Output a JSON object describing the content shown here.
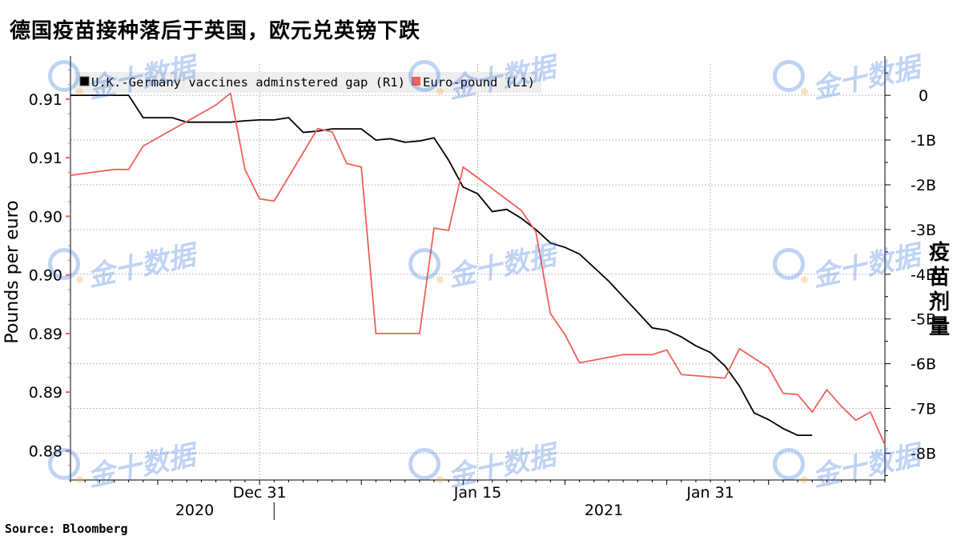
{
  "title": "德国疫苗接种落后于英国，欧元兑英镑下跌",
  "source": "Source:  Bloomberg",
  "watermark": "金十数据",
  "colors": {
    "gap_line": "#000000",
    "euro_line": "#f0605a",
    "grid": "#bdbdbd",
    "legend_bg": "#eeeeee",
    "watermark": "#2f6fdc"
  },
  "chart_data": {
    "type": "line",
    "x": [
      "2020-12-18",
      "2020-12-21",
      "2020-12-22",
      "2020-12-23",
      "2020-12-24",
      "2020-12-28",
      "2020-12-29",
      "2020-12-30",
      "2020-12-31",
      "2021-01-01",
      "2021-01-04",
      "2021-01-05",
      "2021-01-06",
      "2021-01-07",
      "2021-01-08",
      "2021-01-11",
      "2021-01-12",
      "2021-01-13",
      "2021-01-14",
      "2021-01-15",
      "2021-01-18",
      "2021-01-19",
      "2021-01-20",
      "2021-01-21",
      "2021-01-22",
      "2021-01-25",
      "2021-01-26",
      "2021-01-27",
      "2021-01-28",
      "2021-01-29",
      "2021-02-01",
      "2021-02-02",
      "2021-02-03",
      "2021-02-04",
      "2021-02-05"
    ],
    "series": [
      {
        "name": "U.K.-Germany vaccines adminstered gap (R1)",
        "axis": "right",
        "unit": "B",
        "points": [
          [
            "2020-12-18",
            0
          ],
          [
            "2020-12-19",
            0
          ],
          [
            "2020-12-20",
            0
          ],
          [
            "2020-12-21",
            0
          ],
          [
            "2020-12-22",
            0
          ],
          [
            "2020-12-23",
            -0.5
          ],
          [
            "2020-12-24",
            -0.5
          ],
          [
            "2020-12-25",
            -0.5
          ],
          [
            "2020-12-26",
            -0.6
          ],
          [
            "2020-12-27",
            -0.6
          ],
          [
            "2020-12-28",
            -0.6
          ],
          [
            "2020-12-29",
            -0.6
          ],
          [
            "2020-12-30",
            -0.57
          ],
          [
            "2020-12-31",
            -0.55
          ],
          [
            "2021-01-01",
            -0.55
          ],
          [
            "2021-01-02",
            -0.5
          ],
          [
            "2021-01-03",
            -0.83
          ],
          [
            "2021-01-04",
            -0.8
          ],
          [
            "2021-01-05",
            -0.75
          ],
          [
            "2021-01-06",
            -0.75
          ],
          [
            "2021-01-07",
            -0.75
          ],
          [
            "2021-01-08",
            -1.0
          ],
          [
            "2021-01-09",
            -0.97
          ],
          [
            "2021-01-10",
            -1.05
          ],
          [
            "2021-01-11",
            -1.02
          ],
          [
            "2021-01-12",
            -0.95
          ],
          [
            "2021-01-13",
            -1.45
          ],
          [
            "2021-01-14",
            -2.05
          ],
          [
            "2021-01-15",
            -2.2
          ],
          [
            "2021-01-16",
            -2.6
          ],
          [
            "2021-01-17",
            -2.55
          ],
          [
            "2021-01-18",
            -2.75
          ],
          [
            "2021-01-19",
            -3.0
          ],
          [
            "2021-01-20",
            -3.3
          ],
          [
            "2021-01-21",
            -3.4
          ],
          [
            "2021-01-22",
            -3.55
          ],
          [
            "2021-01-23",
            -3.85
          ],
          [
            "2021-01-24",
            -4.15
          ],
          [
            "2021-01-25",
            -4.5
          ],
          [
            "2021-01-26",
            -4.85
          ],
          [
            "2021-01-27",
            -5.2
          ],
          [
            "2021-01-28",
            -5.25
          ],
          [
            "2021-01-29",
            -5.4
          ],
          [
            "2021-01-30",
            -5.6
          ],
          [
            "2021-01-31",
            -5.75
          ],
          [
            "2021-02-01",
            -6.05
          ],
          [
            "2021-02-02",
            -6.5
          ],
          [
            "2021-02-03",
            -7.1
          ],
          [
            "2021-02-04",
            -7.25
          ],
          [
            "2021-02-05",
            -7.45
          ],
          [
            "2021-02-06",
            -7.6
          ],
          [
            "2021-02-07",
            -7.6
          ]
        ]
      },
      {
        "name": "Euro-pound (L1)",
        "axis": "left",
        "unit": "pounds per euro",
        "points": [
          [
            "2020-12-18",
            0.9085
          ],
          [
            "2020-12-21",
            0.909
          ],
          [
            "2020-12-22",
            0.909
          ],
          [
            "2020-12-23",
            0.911
          ],
          [
            "2020-12-28",
            0.9145
          ],
          [
            "2020-12-29",
            0.9155
          ],
          [
            "2020-12-30",
            0.909
          ],
          [
            "2020-12-31",
            0.9065
          ],
          [
            "2021-01-01",
            0.9063
          ],
          [
            "2021-01-04",
            0.9125
          ],
          [
            "2021-01-05",
            0.9122
          ],
          [
            "2021-01-06",
            0.9095
          ],
          [
            "2021-01-07",
            0.9092
          ],
          [
            "2021-01-08",
            0.895
          ],
          [
            "2021-01-11",
            0.895
          ],
          [
            "2021-01-12",
            0.904
          ],
          [
            "2021-01-13",
            0.9038
          ],
          [
            "2021-01-14",
            0.9092
          ],
          [
            "2021-01-15",
            0.9083
          ],
          [
            "2021-01-18",
            0.9055
          ],
          [
            "2021-01-19",
            0.9037
          ],
          [
            "2021-01-20",
            0.8967
          ],
          [
            "2021-01-21",
            0.8949
          ],
          [
            "2021-01-22",
            0.8925
          ],
          [
            "2021-01-25",
            0.8932
          ],
          [
            "2021-01-26",
            0.8932
          ],
          [
            "2021-01-27",
            0.8932
          ],
          [
            "2021-01-28",
            0.8936
          ],
          [
            "2021-01-29",
            0.8915
          ],
          [
            "2021-02-01",
            0.8912
          ],
          [
            "2021-02-02",
            0.8937
          ],
          [
            "2021-02-03",
            0.8929
          ],
          [
            "2021-02-04",
            0.8921
          ],
          [
            "2021-02-05",
            0.8899
          ],
          [
            "2021-02-06",
            0.8898
          ],
          [
            "2021-02-07",
            0.8883
          ],
          [
            "2021-02-08",
            0.8902
          ],
          [
            "2021-02-09",
            0.8888
          ],
          [
            "2021-02-10",
            0.8876
          ],
          [
            "2021-02-11",
            0.8883
          ],
          [
            "2021-02-12",
            0.8855
          ]
        ]
      }
    ],
    "left_axis": {
      "label": "Pounds per euro",
      "ticks": [
        "0.91",
        "0.91",
        "0.90",
        "0.90",
        "0.89",
        "0.89",
        "0.88"
      ],
      "tick_values": [
        0.915,
        0.91,
        0.905,
        0.9,
        0.895,
        0.89,
        0.885
      ],
      "range": [
        0.8825,
        0.918
      ]
    },
    "right_axis": {
      "label": "疫苗剂量",
      "ticks": [
        "0",
        "-1B",
        "-2B",
        "-3B",
        "-4B",
        "-5B",
        "-6B",
        "-7B",
        "-8B"
      ],
      "tick_values": [
        0,
        -1,
        -2,
        -3,
        -4,
        -5,
        -6,
        -7,
        -8
      ],
      "range": [
        -8.6,
        0.7
      ]
    },
    "x_axis": {
      "range": [
        "2020-12-18",
        "2021-02-12"
      ],
      "tick_labels": [
        "Dec 31",
        "Jan 15",
        "Jan 31"
      ],
      "year_labels": [
        "2020",
        "2021"
      ]
    },
    "legend": {
      "placement": "top-left"
    },
    "grid": true
  }
}
